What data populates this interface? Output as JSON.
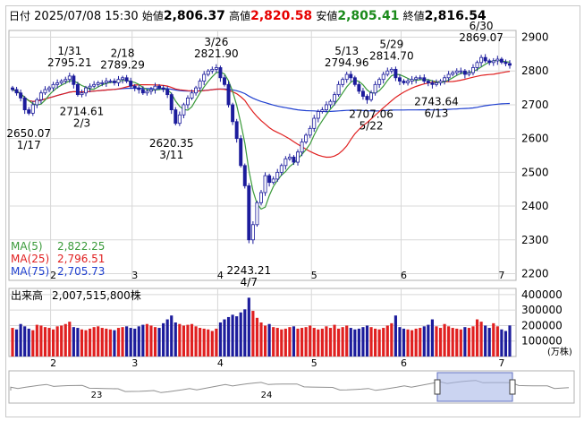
{
  "header": {
    "label_day": "日付",
    "datetime": "2025/07/08 15:30",
    "label_open": "始値",
    "open": "2,806.37",
    "label_high": "高値",
    "high": "2,820.58",
    "label_low": "安値",
    "low": "2,805.41",
    "label_close": "終値",
    "close": "2,816.54"
  },
  "ma_legend": [
    {
      "label": "MA(5)",
      "value": "2,822.25",
      "color": "#3a9a3a"
    },
    {
      "label": "MA(25)",
      "value": "2,796.51",
      "color": "#e02020"
    },
    {
      "label": "MA(75)",
      "value": "2,705.73",
      "color": "#2040d0"
    }
  ],
  "volume_label": "出来高",
  "volume_value": "2,007,515,800株",
  "volume_unit": "(万株)",
  "colors": {
    "up_candle": "#ffffff",
    "down_candle": "#1c1c9c",
    "vol_up": "#e02020",
    "vol_down": "#1c1c9c",
    "grid": "#d8d8d8",
    "nav_fill": "#a8b8e8"
  },
  "navigator_labels": [
    "23",
    "24"
  ],
  "chart_data": [
    {
      "type": "candlestick",
      "title": "",
      "y_ticks": [
        "2900",
        "2800",
        "2700",
        "2600",
        "2500",
        "2400",
        "2300",
        "2200"
      ],
      "ylim": [
        2180,
        2920
      ],
      "x_month_labels": [
        {
          "label": "2",
          "index": 10
        },
        {
          "label": "3",
          "index": 30
        },
        {
          "label": "4",
          "index": 51
        },
        {
          "label": "5",
          "index": 74
        },
        {
          "label": "6",
          "index": 96
        },
        {
          "label": "7",
          "index": 120
        }
      ],
      "annotations": [
        {
          "index": 4,
          "value": 2650.07,
          "price": "2650.07",
          "date": "1/17",
          "pos": "below"
        },
        {
          "index": 14,
          "value": 2795.21,
          "price": "2795.21",
          "date": "1/31",
          "pos": "above"
        },
        {
          "index": 17,
          "value": 2714.61,
          "price": "2714.61",
          "date": "2/3",
          "pos": "below"
        },
        {
          "index": 27,
          "value": 2789.29,
          "price": "2789.29",
          "date": "2/18",
          "pos": "above"
        },
        {
          "index": 39,
          "value": 2620.35,
          "price": "2620.35",
          "date": "3/11",
          "pos": "below"
        },
        {
          "index": 50,
          "value": 2821.9,
          "price": "2821.90",
          "date": "3/26",
          "pos": "above"
        },
        {
          "index": 58,
          "value": 2243.21,
          "price": "2243.21",
          "date": "4/7",
          "pos": "below"
        },
        {
          "index": 82,
          "value": 2794.96,
          "price": "2794.96",
          "date": "5/13",
          "pos": "above"
        },
        {
          "index": 88,
          "value": 2707.06,
          "price": "2707.06",
          "date": "5/22",
          "pos": "below"
        },
        {
          "index": 93,
          "value": 2814.7,
          "price": "2814.70",
          "date": "5/29",
          "pos": "above"
        },
        {
          "index": 104,
          "value": 2743.64,
          "price": "2743.64",
          "date": "6/13",
          "pos": "below"
        },
        {
          "index": 115,
          "value": 2869.07,
          "price": "2869.07",
          "date": "6/30",
          "pos": "above"
        }
      ],
      "close": [
        2745,
        2735,
        2720,
        2685,
        2675,
        2700,
        2715,
        2735,
        2745,
        2750,
        2760,
        2765,
        2770,
        2775,
        2785,
        2760,
        2730,
        2735,
        2750,
        2755,
        2760,
        2765,
        2765,
        2770,
        2770,
        2765,
        2775,
        2780,
        2770,
        2755,
        2750,
        2745,
        2735,
        2740,
        2745,
        2755,
        2750,
        2745,
        2730,
        2685,
        2645,
        2670,
        2700,
        2720,
        2735,
        2750,
        2770,
        2790,
        2800,
        2805,
        2810,
        2780,
        2760,
        2700,
        2650,
        2600,
        2520,
        2460,
        2300,
        2345,
        2410,
        2440,
        2490,
        2470,
        2480,
        2500,
        2520,
        2540,
        2545,
        2530,
        2560,
        2590,
        2610,
        2630,
        2660,
        2680,
        2685,
        2700,
        2710,
        2730,
        2760,
        2775,
        2790,
        2780,
        2760,
        2740,
        2725,
        2715,
        2735,
        2760,
        2775,
        2790,
        2800,
        2805,
        2780,
        2770,
        2765,
        2770,
        2775,
        2780,
        2780,
        2770,
        2765,
        2760,
        2765,
        2770,
        2780,
        2790,
        2795,
        2800,
        2800,
        2790,
        2795,
        2810,
        2825,
        2840,
        2830,
        2825,
        2830,
        2835,
        2826,
        2822,
        2817
      ],
      "volume": [
        185000,
        175000,
        210000,
        195000,
        180000,
        170000,
        205000,
        200000,
        190000,
        185000,
        175000,
        195000,
        200000,
        210000,
        225000,
        190000,
        185000,
        175000,
        170000,
        180000,
        190000,
        195000,
        185000,
        180000,
        175000,
        170000,
        185000,
        190000,
        195000,
        185000,
        180000,
        195000,
        205000,
        210000,
        200000,
        190000,
        185000,
        215000,
        240000,
        265000,
        220000,
        210000,
        200000,
        205000,
        210000,
        195000,
        185000,
        180000,
        175000,
        165000,
        180000,
        220000,
        240000,
        255000,
        270000,
        260000,
        285000,
        305000,
        380000,
        295000,
        250000,
        220000,
        200000,
        210000,
        190000,
        185000,
        175000,
        180000,
        190000,
        195000,
        180000,
        185000,
        190000,
        200000,
        185000,
        175000,
        180000,
        195000,
        185000,
        205000,
        180000,
        190000,
        200000,
        185000,
        175000,
        180000,
        190000,
        200000,
        190000,
        180000,
        175000,
        185000,
        200000,
        215000,
        265000,
        190000,
        180000,
        175000,
        170000,
        180000,
        185000,
        195000,
        205000,
        240000,
        195000,
        185000,
        210000,
        195000,
        185000,
        180000,
        175000,
        190000,
        185000,
        195000,
        240000,
        225000,
        200000,
        185000,
        215000,
        195000,
        175000,
        165000,
        200752
      ]
    },
    {
      "type": "bar",
      "title": "出来高",
      "y_ticks": [
        "400000",
        "300000",
        "200000",
        "100000"
      ],
      "ylim": [
        0,
        440000
      ]
    }
  ]
}
